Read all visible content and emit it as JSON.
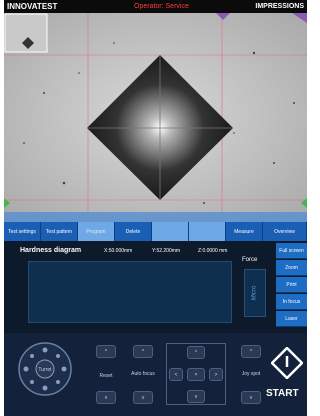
{
  "header": {
    "logo": "INNOVATEST",
    "operator": "Operator: Service",
    "mode": "IMPRESSIONS"
  },
  "tabs": [
    "Test settings",
    "Test pattern",
    "Program",
    "Delete",
    "Measure",
    "Overview"
  ],
  "diagram": {
    "title": "Hardness diagram",
    "x": "X:50.000mm",
    "y": "Y:52.200mm",
    "z": "Z:0.0000 mm",
    "force_label": "Force",
    "force_value": "Micro"
  },
  "side_buttons": [
    "Full screen",
    "Zoom",
    "Print",
    "In focus",
    "Laser"
  ],
  "controls": {
    "turret": "Turret",
    "reset": "Reset",
    "auto_focus": "Auto focus",
    "joy_spot": "Joy spot",
    "start": "START"
  }
}
